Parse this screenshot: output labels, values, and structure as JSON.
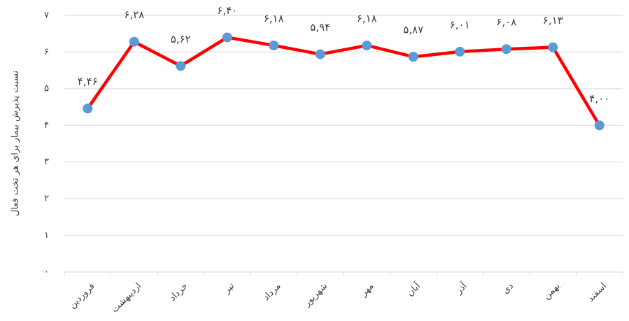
{
  "chart_data": {
    "type": "line",
    "y_label": "نسبت پذیرش بیمار برای هر تخت فعال",
    "categories": [
      "فروردین",
      "اردیبهشت",
      "خرداد",
      "تیر",
      "مرداد",
      "شهریور",
      "مهر",
      "آبان",
      "آذر",
      "دی",
      "بهمن",
      "اسفند"
    ],
    "series": [
      {
        "color": "#ff0000",
        "marker_color": "#5b9bd5",
        "values": [
          4.46,
          6.28,
          5.62,
          6.4,
          6.18,
          5.94,
          6.18,
          5.87,
          6.01,
          6.08,
          6.13,
          4.0
        ],
        "value_labels": [
          "۴,۴۶",
          "۶,۲۸",
          "۵,۶۲",
          "۶,۴۰",
          "۶,۱۸",
          "۵,۹۴",
          "۶,۱۸",
          "۵,۸۷",
          "۶,۰۱",
          "۶,۰۸",
          "۶,۱۳",
          "۴,۰۰"
        ]
      }
    ],
    "ylim": [
      0,
      7
    ],
    "yticks": [
      {
        "value": 0,
        "label": "۰"
      },
      {
        "value": 1,
        "label": "۱"
      },
      {
        "value": 2,
        "label": "۲"
      },
      {
        "value": 3,
        "label": "۳"
      },
      {
        "value": 4,
        "label": "۴"
      },
      {
        "value": 5,
        "label": "۵"
      },
      {
        "value": 6,
        "label": "۶"
      },
      {
        "value": 7,
        "label": "۷"
      }
    ],
    "grid": true
  }
}
